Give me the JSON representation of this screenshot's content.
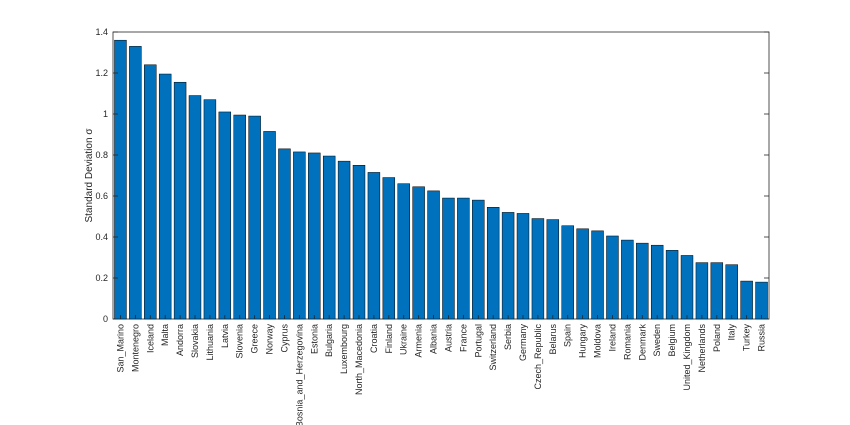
{
  "chart_data": {
    "type": "bar",
    "title": "",
    "xlabel": "",
    "ylabel": "Standard Deviation σ",
    "ylim": [
      0,
      1.4
    ],
    "yticks": [
      0,
      0.2,
      0.4,
      0.6,
      0.8,
      1,
      1.2,
      1.4
    ],
    "ytick_labels": [
      "0",
      "0.2",
      "0.4",
      "0.6",
      "0.8",
      "1",
      "1.2",
      "1.4"
    ],
    "grid": false,
    "legend": "none",
    "bar_color": "#0072BD",
    "categories": [
      "San_Marino",
      "Montenegro",
      "Iceland",
      "Malta",
      "Andorra",
      "Slovakia",
      "Lithuania",
      "Latvia",
      "Slovenia",
      "Greece",
      "Norway",
      "Cyprus",
      "Bosnia_and_Herzegovina",
      "Estonia",
      "Bulgaria",
      "Luxembourg",
      "North_Macedonia",
      "Croatia",
      "Finland",
      "Ukraine",
      "Armenia",
      "Albania",
      "Austria",
      "France",
      "Portugal",
      "Switzerland",
      "Serbia",
      "Germany",
      "Czech_Republic",
      "Belarus",
      "Spain",
      "Hungary",
      "Moldova",
      "Ireland",
      "Romania",
      "Denmark",
      "Sweden",
      "Belgium",
      "United_Kingdom",
      "Netherlands",
      "Poland",
      "Italy",
      "Turkey",
      "Russia"
    ],
    "values": [
      1.36,
      1.33,
      1.24,
      1.195,
      1.155,
      1.09,
      1.07,
      1.01,
      0.995,
      0.99,
      0.915,
      0.83,
      0.815,
      0.81,
      0.795,
      0.77,
      0.75,
      0.715,
      0.69,
      0.66,
      0.645,
      0.625,
      0.59,
      0.59,
      0.58,
      0.545,
      0.52,
      0.515,
      0.49,
      0.485,
      0.455,
      0.44,
      0.43,
      0.405,
      0.385,
      0.37,
      0.36,
      0.335,
      0.31,
      0.275,
      0.275,
      0.265,
      0.185,
      0.18
    ]
  }
}
